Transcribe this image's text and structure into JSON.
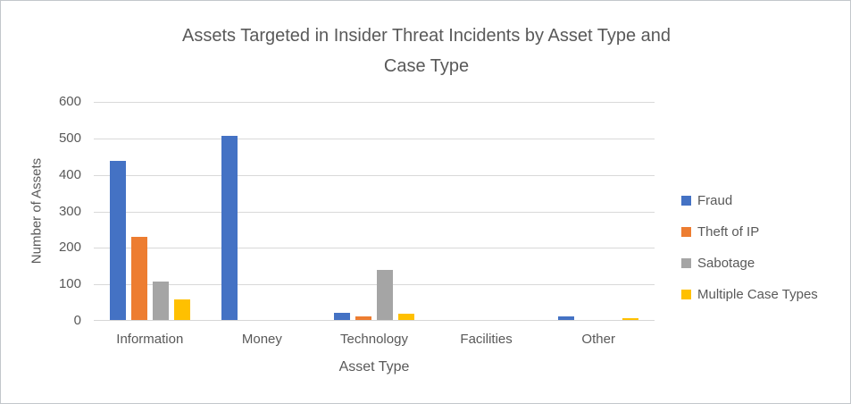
{
  "chart_data": {
    "type": "bar",
    "title": "Assets Targeted in Insider Threat Incidents by Asset Type and Case Type",
    "title_lines": [
      "Assets Targeted in Insider Threat Incidents by Asset Type and",
      "Case Type"
    ],
    "xlabel": "Asset Type",
    "ylabel": "Number of Assets",
    "categories": [
      "Information",
      "Money",
      "Technology",
      "Facilities",
      "Other"
    ],
    "series": [
      {
        "name": "Fraud",
        "color": "#4472C4",
        "values": [
          435,
          505,
          20,
          0,
          10
        ]
      },
      {
        "name": "Theft of IP",
        "color": "#ED7D31",
        "values": [
          228,
          0,
          10,
          0,
          0
        ]
      },
      {
        "name": "Sabotage",
        "color": "#A5A5A5",
        "values": [
          106,
          0,
          136,
          0,
          0
        ]
      },
      {
        "name": "Multiple Case Types",
        "color": "#FFC000",
        "values": [
          56,
          0,
          18,
          0,
          6
        ]
      }
    ],
    "ylim": [
      0,
      600
    ],
    "ytick_step": 100,
    "yticks": [
      0,
      100,
      200,
      300,
      400,
      500,
      600
    ],
    "grid": true,
    "legend_position": "right"
  },
  "colors": {
    "text": "#595959",
    "gridline": "#d9d9d9",
    "axis_line": "#d6d6d6"
  }
}
